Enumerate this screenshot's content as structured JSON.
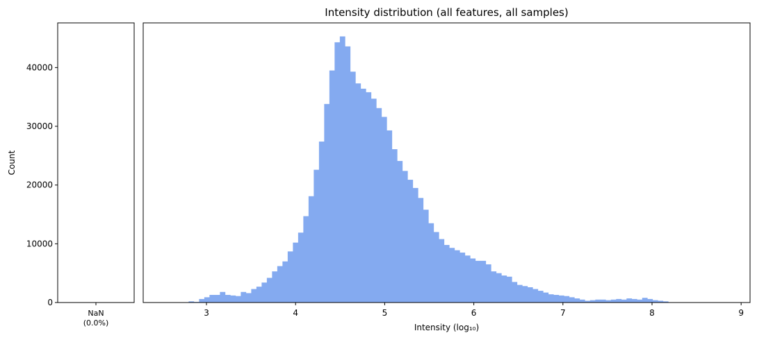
{
  "chart_data": [
    {
      "type": "bar",
      "panel": "nan",
      "categories": [
        "NaN\n(0.0%)"
      ],
      "category_lines": [
        "NaN",
        "(0.0%)"
      ],
      "values": [
        0
      ],
      "ylabel": "Count",
      "ylim": [
        0,
        47600
      ],
      "yticks": [
        0,
        10000,
        20000,
        30000,
        40000
      ],
      "ytick_labels": [
        "0",
        "10000",
        "20000",
        "30000",
        "40000"
      ]
    },
    {
      "type": "bar",
      "subtype": "histogram",
      "panel": "main",
      "title": "Intensity distribution (all features, all samples)",
      "xlabel": "Intensity (log₁₀)",
      "ylabel": "Count",
      "xlim": [
        2.29,
        9.1
      ],
      "ylim": [
        0,
        47600
      ],
      "xticks": [
        3,
        4,
        5,
        6,
        7,
        8,
        9
      ],
      "xtick_labels": [
        "3",
        "4",
        "5",
        "6",
        "7",
        "8",
        "9"
      ],
      "bin_start": 2.8,
      "bin_width": 0.0585,
      "values": [
        200,
        100,
        600,
        900,
        1300,
        1300,
        1800,
        1300,
        1200,
        1100,
        1800,
        1600,
        2300,
        2700,
        3400,
        4200,
        5300,
        6200,
        7000,
        8700,
        10200,
        11900,
        14700,
        18100,
        22600,
        27400,
        33800,
        39500,
        44300,
        45300,
        43600,
        39300,
        37300,
        36400,
        35800,
        34700,
        33100,
        31600,
        29300,
        26100,
        24100,
        22400,
        20900,
        19500,
        17800,
        15800,
        13500,
        12000,
        10800,
        9800,
        9300,
        8900,
        8500,
        8000,
        7500,
        7100,
        7100,
        6500,
        5300,
        5000,
        4600,
        4400,
        3500,
        3000,
        2800,
        2600,
        2300,
        2000,
        1700,
        1400,
        1300,
        1200,
        1100,
        900,
        700,
        500,
        300,
        400,
        500,
        500,
        400,
        500,
        600,
        500,
        700,
        600,
        500,
        800,
        600,
        400,
        300,
        200
      ],
      "color": "#84aaf0"
    }
  ],
  "colors": {
    "bar": "#84aaf0",
    "axis": "#000000",
    "background": "#ffffff"
  }
}
